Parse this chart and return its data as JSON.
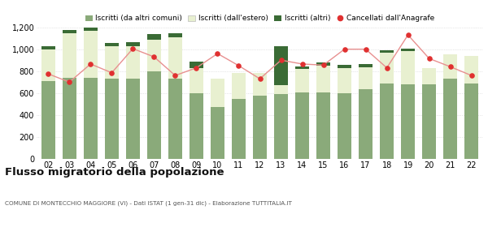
{
  "years": [
    "02",
    "03",
    "04",
    "05",
    "06",
    "07",
    "08",
    "09",
    "10",
    "11",
    "12",
    "13",
    "14",
    "15",
    "16",
    "17",
    "18",
    "19",
    "20",
    "21",
    "22"
  ],
  "iscritti_comuni": [
    710,
    740,
    740,
    730,
    730,
    800,
    730,
    600,
    470,
    550,
    580,
    590,
    605,
    605,
    600,
    635,
    690,
    680,
    680,
    735,
    685
  ],
  "iscritti_estero": [
    285,
    405,
    425,
    295,
    295,
    285,
    375,
    225,
    260,
    230,
    200,
    85,
    215,
    245,
    230,
    200,
    280,
    305,
    145,
    215,
    250
  ],
  "iscritti_altri": [
    35,
    30,
    35,
    30,
    40,
    50,
    40,
    60,
    0,
    0,
    0,
    350,
    25,
    30,
    25,
    30,
    20,
    20,
    0,
    0,
    0
  ],
  "cancellati": [
    775,
    700,
    865,
    785,
    1005,
    930,
    760,
    830,
    960,
    850,
    730,
    900,
    865,
    855,
    1000,
    1000,
    830,
    1130,
    915,
    840,
    760
  ],
  "color_comuni": "#8aaa7a",
  "color_estero": "#e8f0d0",
  "color_altri": "#3a6b35",
  "color_cancellati": "#e03030",
  "color_line": "#e89090",
  "ylim": [
    0,
    1200
  ],
  "yticks": [
    0,
    200,
    400,
    600,
    800,
    1000,
    1200
  ],
  "ytick_labels": [
    "0",
    "200",
    "400",
    "600",
    "800",
    "1,000",
    "1,200"
  ],
  "title": "Flusso migratorio della popolazione",
  "subtitle": "COMUNE DI MONTECCHIO MAGGIORE (VI) - Dati ISTAT (1 gen-31 dic) - Elaborazione TUTTITALIA.IT",
  "legend_labels": [
    "Iscritti (da altri comuni)",
    "Iscritti (dall'estero)",
    "Iscritti (altri)",
    "Cancellati dall'Anagrafe"
  ],
  "bg_color": "#ffffff",
  "grid_color": "#d0d0d0",
  "bar_width": 0.65
}
